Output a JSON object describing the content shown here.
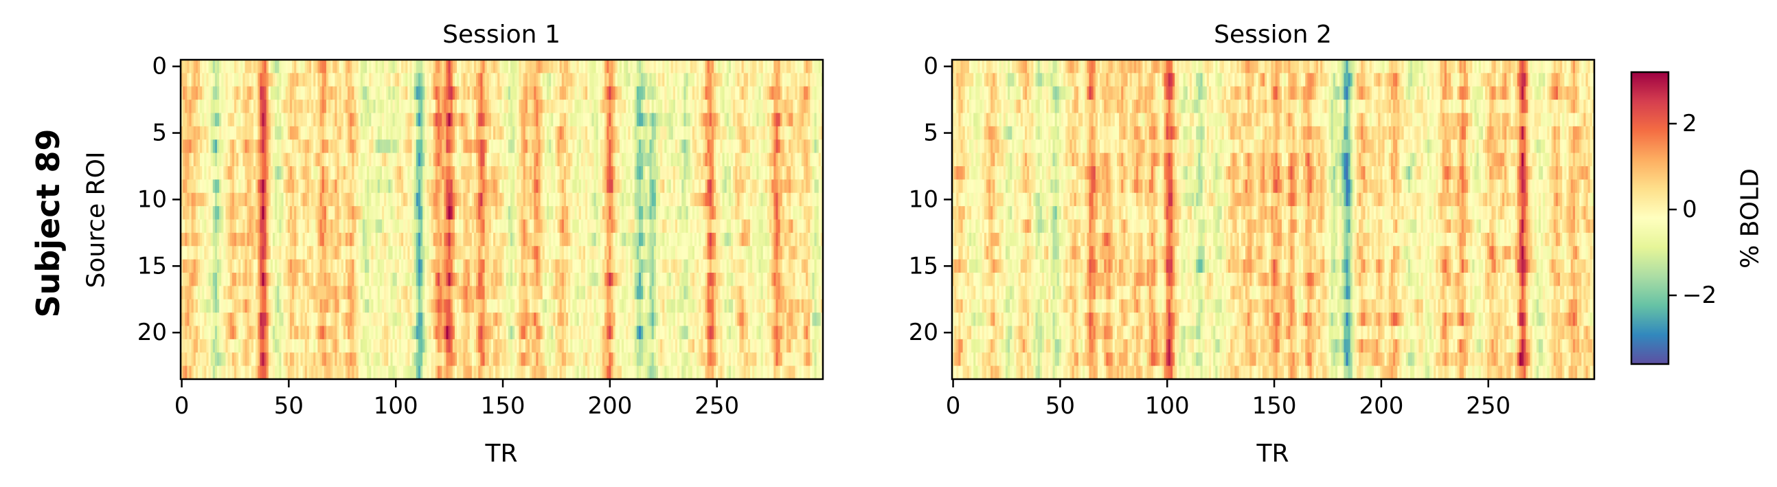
{
  "figure": {
    "row_label": "Subject 89"
  },
  "chart_data": [
    {
      "type": "heatmap",
      "title": "Session 1",
      "xlabel": "TR",
      "ylabel": "Source ROI",
      "x_range": [
        0,
        299
      ],
      "y_range": [
        0,
        23
      ],
      "xticks": [
        0,
        50,
        100,
        150,
        200,
        250
      ],
      "yticks": [
        0,
        5,
        10,
        15,
        20
      ],
      "n_rois": 24,
      "n_timepoints": 300,
      "colormap": "Spectral_r",
      "global_events": [
        {
          "tr": 2,
          "amp": 0.8
        },
        {
          "tr": 6,
          "amp": 0.7
        },
        {
          "tr": 16,
          "amp": -1.3
        },
        {
          "tr": 24,
          "amp": 0.6
        },
        {
          "tr": 31,
          "amp": 0.8
        },
        {
          "tr": 38,
          "amp": 2.5
        },
        {
          "tr": 45,
          "amp": -0.8
        },
        {
          "tr": 52,
          "amp": 0.7
        },
        {
          "tr": 58,
          "amp": 0.5
        },
        {
          "tr": 66,
          "amp": 1.2
        },
        {
          "tr": 72,
          "amp": 0.7
        },
        {
          "tr": 79,
          "amp": 1.0
        },
        {
          "tr": 86,
          "amp": -0.9
        },
        {
          "tr": 92,
          "amp": -0.8
        },
        {
          "tr": 98,
          "amp": -0.7
        },
        {
          "tr": 111,
          "amp": -2.2
        },
        {
          "tr": 120,
          "amp": 1.3
        },
        {
          "tr": 125,
          "amp": 2.2
        },
        {
          "tr": 133,
          "amp": 1.0
        },
        {
          "tr": 140,
          "amp": 1.6
        },
        {
          "tr": 147,
          "amp": 0.5
        },
        {
          "tr": 154,
          "amp": -0.8
        },
        {
          "tr": 160,
          "amp": 0.9
        },
        {
          "tr": 166,
          "amp": 1.1
        },
        {
          "tr": 172,
          "amp": -0.5
        },
        {
          "tr": 178,
          "amp": 0.9
        },
        {
          "tr": 185,
          "amp": -0.4
        },
        {
          "tr": 193,
          "amp": -0.5
        },
        {
          "tr": 200,
          "amp": 1.6
        },
        {
          "tr": 207,
          "amp": -0.6
        },
        {
          "tr": 214,
          "amp": -1.8
        },
        {
          "tr": 220,
          "amp": -1.5
        },
        {
          "tr": 228,
          "amp": -0.5
        },
        {
          "tr": 235,
          "amp": -1.0
        },
        {
          "tr": 247,
          "amp": 1.6
        },
        {
          "tr": 255,
          "amp": -0.6
        },
        {
          "tr": 262,
          "amp": 0.6
        },
        {
          "tr": 270,
          "amp": -0.4
        },
        {
          "tr": 278,
          "amp": 1.4
        },
        {
          "tr": 284,
          "amp": 0.6
        },
        {
          "tr": 292,
          "amp": 0.8
        },
        {
          "tr": 296,
          "amp": -1.0
        }
      ]
    },
    {
      "type": "heatmap",
      "title": "Session 2",
      "xlabel": "TR",
      "ylabel": "",
      "x_range": [
        0,
        299
      ],
      "y_range": [
        0,
        23
      ],
      "xticks": [
        0,
        50,
        100,
        150,
        200,
        250
      ],
      "yticks": [
        0,
        5,
        10,
        15,
        20
      ],
      "n_rois": 24,
      "n_timepoints": 300,
      "colormap": "Spectral_r",
      "global_events": [
        {
          "tr": 3,
          "amp": 0.6
        },
        {
          "tr": 10,
          "amp": -0.5
        },
        {
          "tr": 18,
          "amp": 0.8
        },
        {
          "tr": 26,
          "amp": -0.7
        },
        {
          "tr": 34,
          "amp": 0.6
        },
        {
          "tr": 40,
          "amp": -0.9
        },
        {
          "tr": 48,
          "amp": -1.3
        },
        {
          "tr": 57,
          "amp": 0.7
        },
        {
          "tr": 65,
          "amp": 1.7
        },
        {
          "tr": 72,
          "amp": 1.2
        },
        {
          "tr": 79,
          "amp": 0.9
        },
        {
          "tr": 86,
          "amp": 0.8
        },
        {
          "tr": 93,
          "amp": 1.3
        },
        {
          "tr": 101,
          "amp": 2.2
        },
        {
          "tr": 108,
          "amp": -0.6
        },
        {
          "tr": 115,
          "amp": -1.2
        },
        {
          "tr": 123,
          "amp": -0.6
        },
        {
          "tr": 131,
          "amp": 0.6
        },
        {
          "tr": 138,
          "amp": 0.9
        },
        {
          "tr": 145,
          "amp": 0.6
        },
        {
          "tr": 151,
          "amp": 1.4
        },
        {
          "tr": 158,
          "amp": 1.1
        },
        {
          "tr": 166,
          "amp": 1.3
        },
        {
          "tr": 172,
          "amp": 0.6
        },
        {
          "tr": 178,
          "amp": -1.2
        },
        {
          "tr": 184,
          "amp": -2.7
        },
        {
          "tr": 191,
          "amp": 0.9
        },
        {
          "tr": 199,
          "amp": 0.7
        },
        {
          "tr": 206,
          "amp": 1.0
        },
        {
          "tr": 214,
          "amp": -0.8
        },
        {
          "tr": 222,
          "amp": -0.6
        },
        {
          "tr": 230,
          "amp": 1.1
        },
        {
          "tr": 238,
          "amp": 1.2
        },
        {
          "tr": 245,
          "amp": -0.5
        },
        {
          "tr": 252,
          "amp": 0.9
        },
        {
          "tr": 258,
          "amp": 0.6
        },
        {
          "tr": 266,
          "amp": 2.5
        },
        {
          "tr": 274,
          "amp": -0.6
        },
        {
          "tr": 282,
          "amp": 0.8
        },
        {
          "tr": 290,
          "amp": 1.0
        },
        {
          "tr": 296,
          "amp": 0.5
        }
      ]
    }
  ],
  "colorbar": {
    "label": "% BOLD",
    "vmin": -3.6,
    "vmax": 3.2,
    "ticks": [
      2,
      0,
      -2
    ],
    "tick_labels": [
      "2",
      "0",
      "−2"
    ],
    "colors": [
      "#9e0142",
      "#d53e4f",
      "#f46d43",
      "#fdae61",
      "#fee08b",
      "#ffffbf",
      "#e6f598",
      "#abdda4",
      "#66c2a5",
      "#3288bd",
      "#5e4fa2"
    ]
  }
}
